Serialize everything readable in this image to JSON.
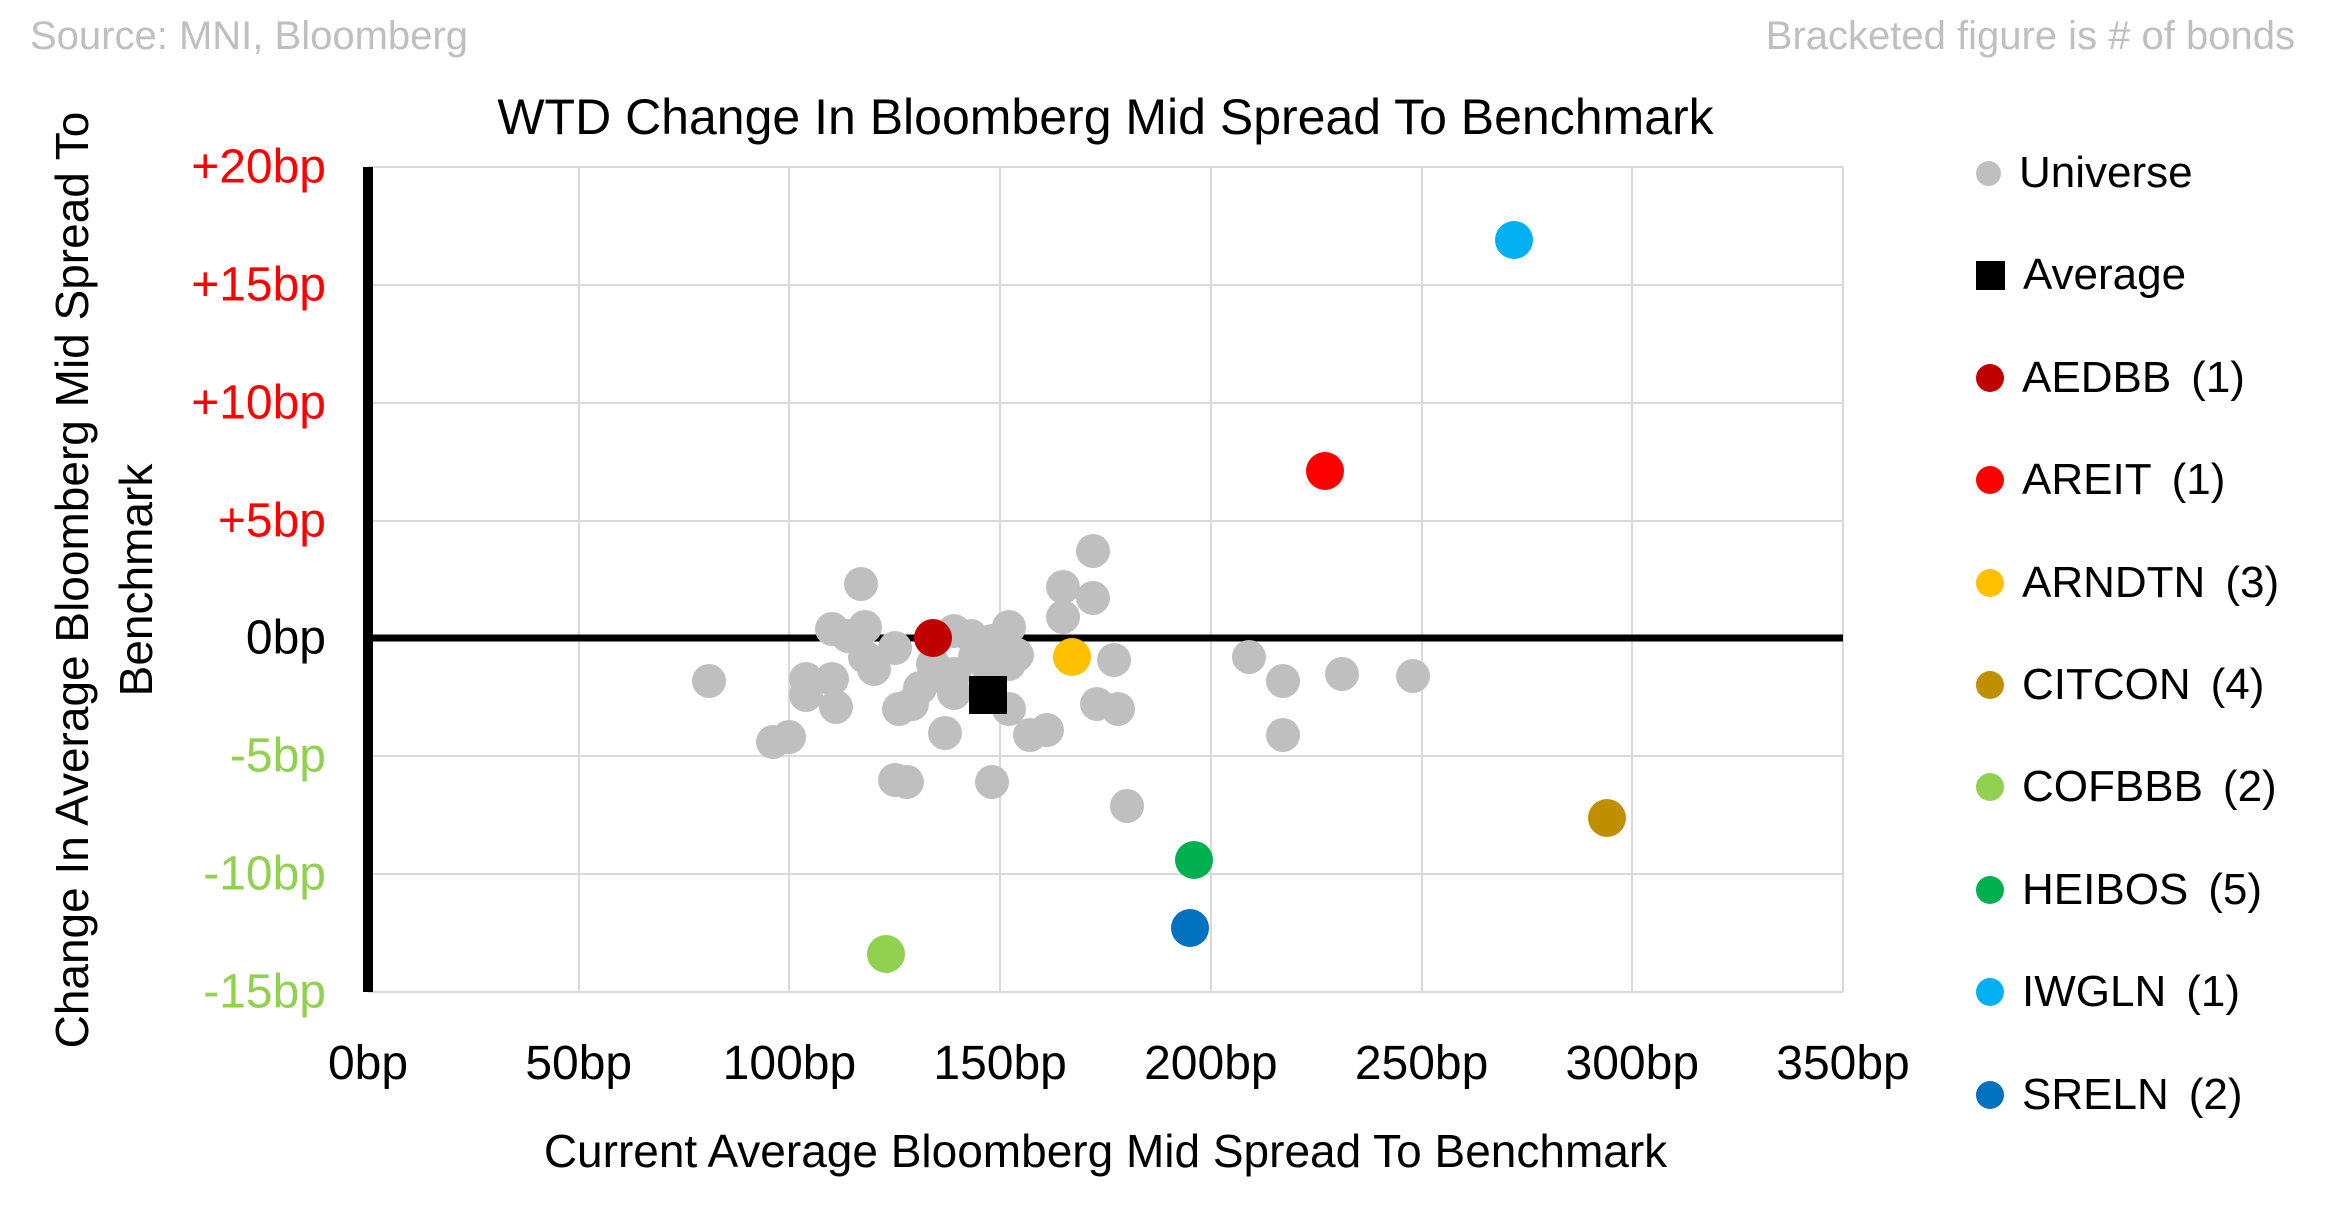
{
  "header": {
    "source": "Source: MNI, Bloomberg",
    "note": "Bracketed figure is # of bonds"
  },
  "chart_data": {
    "type": "scatter",
    "title": "WTD Change In Bloomberg Mid Spread To Benchmark",
    "xlabel": "Current Average Bloomberg Mid Spread To Benchmark",
    "ylabel": "Change In Average Bloomberg Mid Spread To Benchmark",
    "ylabel_lines": [
      "Change In Average Bloomberg Mid Spread To",
      "Benchmark"
    ],
    "xlim": [
      0,
      350
    ],
    "ylim": [
      -15,
      20
    ],
    "grid": true,
    "legend_position": "right",
    "x_ticks": [
      {
        "label": "0bp",
        "value": 0,
        "color": "#000000"
      },
      {
        "label": "50bp",
        "value": 50,
        "color": "#000000"
      },
      {
        "label": "100bp",
        "value": 100,
        "color": "#000000"
      },
      {
        "label": "150bp",
        "value": 150,
        "color": "#000000"
      },
      {
        "label": "200bp",
        "value": 200,
        "color": "#000000"
      },
      {
        "label": "250bp",
        "value": 250,
        "color": "#000000"
      },
      {
        "label": "300bp",
        "value": 300,
        "color": "#000000"
      },
      {
        "label": "350bp",
        "value": 350,
        "color": "#000000"
      }
    ],
    "y_ticks": [
      {
        "label": "+20bp",
        "value": 20,
        "color": "#ff0000"
      },
      {
        "label": "+15bp",
        "value": 15,
        "color": "#ff0000"
      },
      {
        "label": "+10bp",
        "value": 10,
        "color": "#ff0000"
      },
      {
        "label": "+5bp",
        "value": 5,
        "color": "#ff0000"
      },
      {
        "label": "0bp",
        "value": 0,
        "color": "#000000"
      },
      {
        "label": "-5bp",
        "value": -5,
        "color": "#92d050"
      },
      {
        "label": "-10bp",
        "value": -10,
        "color": "#92d050"
      },
      {
        "label": "-15bp",
        "value": -15,
        "color": "#92d050"
      }
    ],
    "series": [
      {
        "id": "universe",
        "name": "Universe",
        "count": null,
        "color": "#bfbfbf",
        "marker": "circle",
        "size": "small",
        "legend_size": 25,
        "z": 2,
        "points": [
          [
            81,
            -1.8
          ],
          [
            96,
            -4.4
          ],
          [
            100,
            -4.2
          ],
          [
            104,
            -1.7
          ],
          [
            104,
            -2.4
          ],
          [
            110,
            0.4
          ],
          [
            110,
            -1.7
          ],
          [
            111,
            -2.9
          ],
          [
            114,
            0.1
          ],
          [
            117,
            2.3
          ],
          [
            118,
            0.5
          ],
          [
            118,
            -0.8
          ],
          [
            120,
            -1.3
          ],
          [
            125,
            -0.4
          ],
          [
            125,
            -6.0
          ],
          [
            128,
            -6.1
          ],
          [
            126,
            -3.0
          ],
          [
            129,
            -2.8
          ],
          [
            131,
            -2.1
          ],
          [
            134,
            -1.1
          ],
          [
            136,
            -1.6
          ],
          [
            137,
            -4.0
          ],
          [
            139,
            0.3
          ],
          [
            139,
            -1.5
          ],
          [
            139,
            -2.3
          ],
          [
            143,
            0.1
          ],
          [
            144,
            -0.8
          ],
          [
            147,
            -1.2
          ],
          [
            148,
            -0.1
          ],
          [
            148,
            -6.1
          ],
          [
            149,
            -1.0
          ],
          [
            152,
            0.5
          ],
          [
            152,
            -1.1
          ],
          [
            152,
            -3.0
          ],
          [
            154,
            -0.7
          ],
          [
            157,
            -4.1
          ],
          [
            161,
            -3.9
          ],
          [
            165,
            2.2
          ],
          [
            165,
            0.9
          ],
          [
            172,
            3.7
          ],
          [
            172,
            1.7
          ],
          [
            173,
            -2.8
          ],
          [
            177,
            -0.9
          ],
          [
            178,
            -3.0
          ],
          [
            180,
            -7.1
          ],
          [
            209,
            -0.8
          ],
          [
            217,
            -1.8
          ],
          [
            217,
            -4.1
          ],
          [
            231,
            -1.5
          ],
          [
            248,
            -1.6
          ]
        ]
      },
      {
        "id": "average",
        "name": "Average",
        "count": null,
        "color": "#000000",
        "marker": "square",
        "size": "large",
        "legend_size": 29,
        "z": 4,
        "points": [
          [
            147,
            -2.4
          ]
        ]
      },
      {
        "id": "aedbb",
        "name": "AEDBB",
        "count": 1,
        "color": "#c00000",
        "marker": "circle",
        "size": "large",
        "legend_size": 28,
        "z": 3,
        "points": [
          [
            134,
            0.0
          ]
        ]
      },
      {
        "id": "areit",
        "name": "AREIT",
        "count": 1,
        "color": "#ff0000",
        "marker": "circle",
        "size": "large",
        "legend_size": 28,
        "z": 3,
        "points": [
          [
            227,
            7.1
          ]
        ]
      },
      {
        "id": "arndtn",
        "name": "ARNDTN",
        "count": 3,
        "color": "#ffc000",
        "marker": "circle",
        "size": "large",
        "legend_size": 28,
        "z": 3,
        "points": [
          [
            167,
            -0.8
          ]
        ]
      },
      {
        "id": "citcon",
        "name": "CITCON",
        "count": 4,
        "color": "#bf8f00",
        "marker": "circle",
        "size": "large",
        "legend_size": 28,
        "z": 3,
        "points": [
          [
            294,
            -7.6
          ]
        ]
      },
      {
        "id": "cofbbb",
        "name": "COFBBB",
        "count": 2,
        "color": "#92d050",
        "marker": "circle",
        "size": "large",
        "legend_size": 28,
        "z": 3,
        "points": [
          [
            123,
            -13.4
          ]
        ]
      },
      {
        "id": "heibos",
        "name": "HEIBOS",
        "count": 5,
        "color": "#00b050",
        "marker": "circle",
        "size": "large",
        "legend_size": 28,
        "z": 3,
        "points": [
          [
            196,
            -9.4
          ]
        ]
      },
      {
        "id": "iwgln",
        "name": "IWGLN",
        "count": 1,
        "color": "#00b0f0",
        "marker": "circle",
        "size": "large",
        "legend_size": 28,
        "z": 3,
        "points": [
          [
            272,
            16.9
          ]
        ]
      },
      {
        "id": "sreln",
        "name": "SRELN",
        "count": 2,
        "color": "#0070c0",
        "marker": "circle",
        "size": "large",
        "legend_size": 28,
        "z": 3,
        "points": [
          [
            195,
            -12.3
          ]
        ]
      }
    ]
  }
}
